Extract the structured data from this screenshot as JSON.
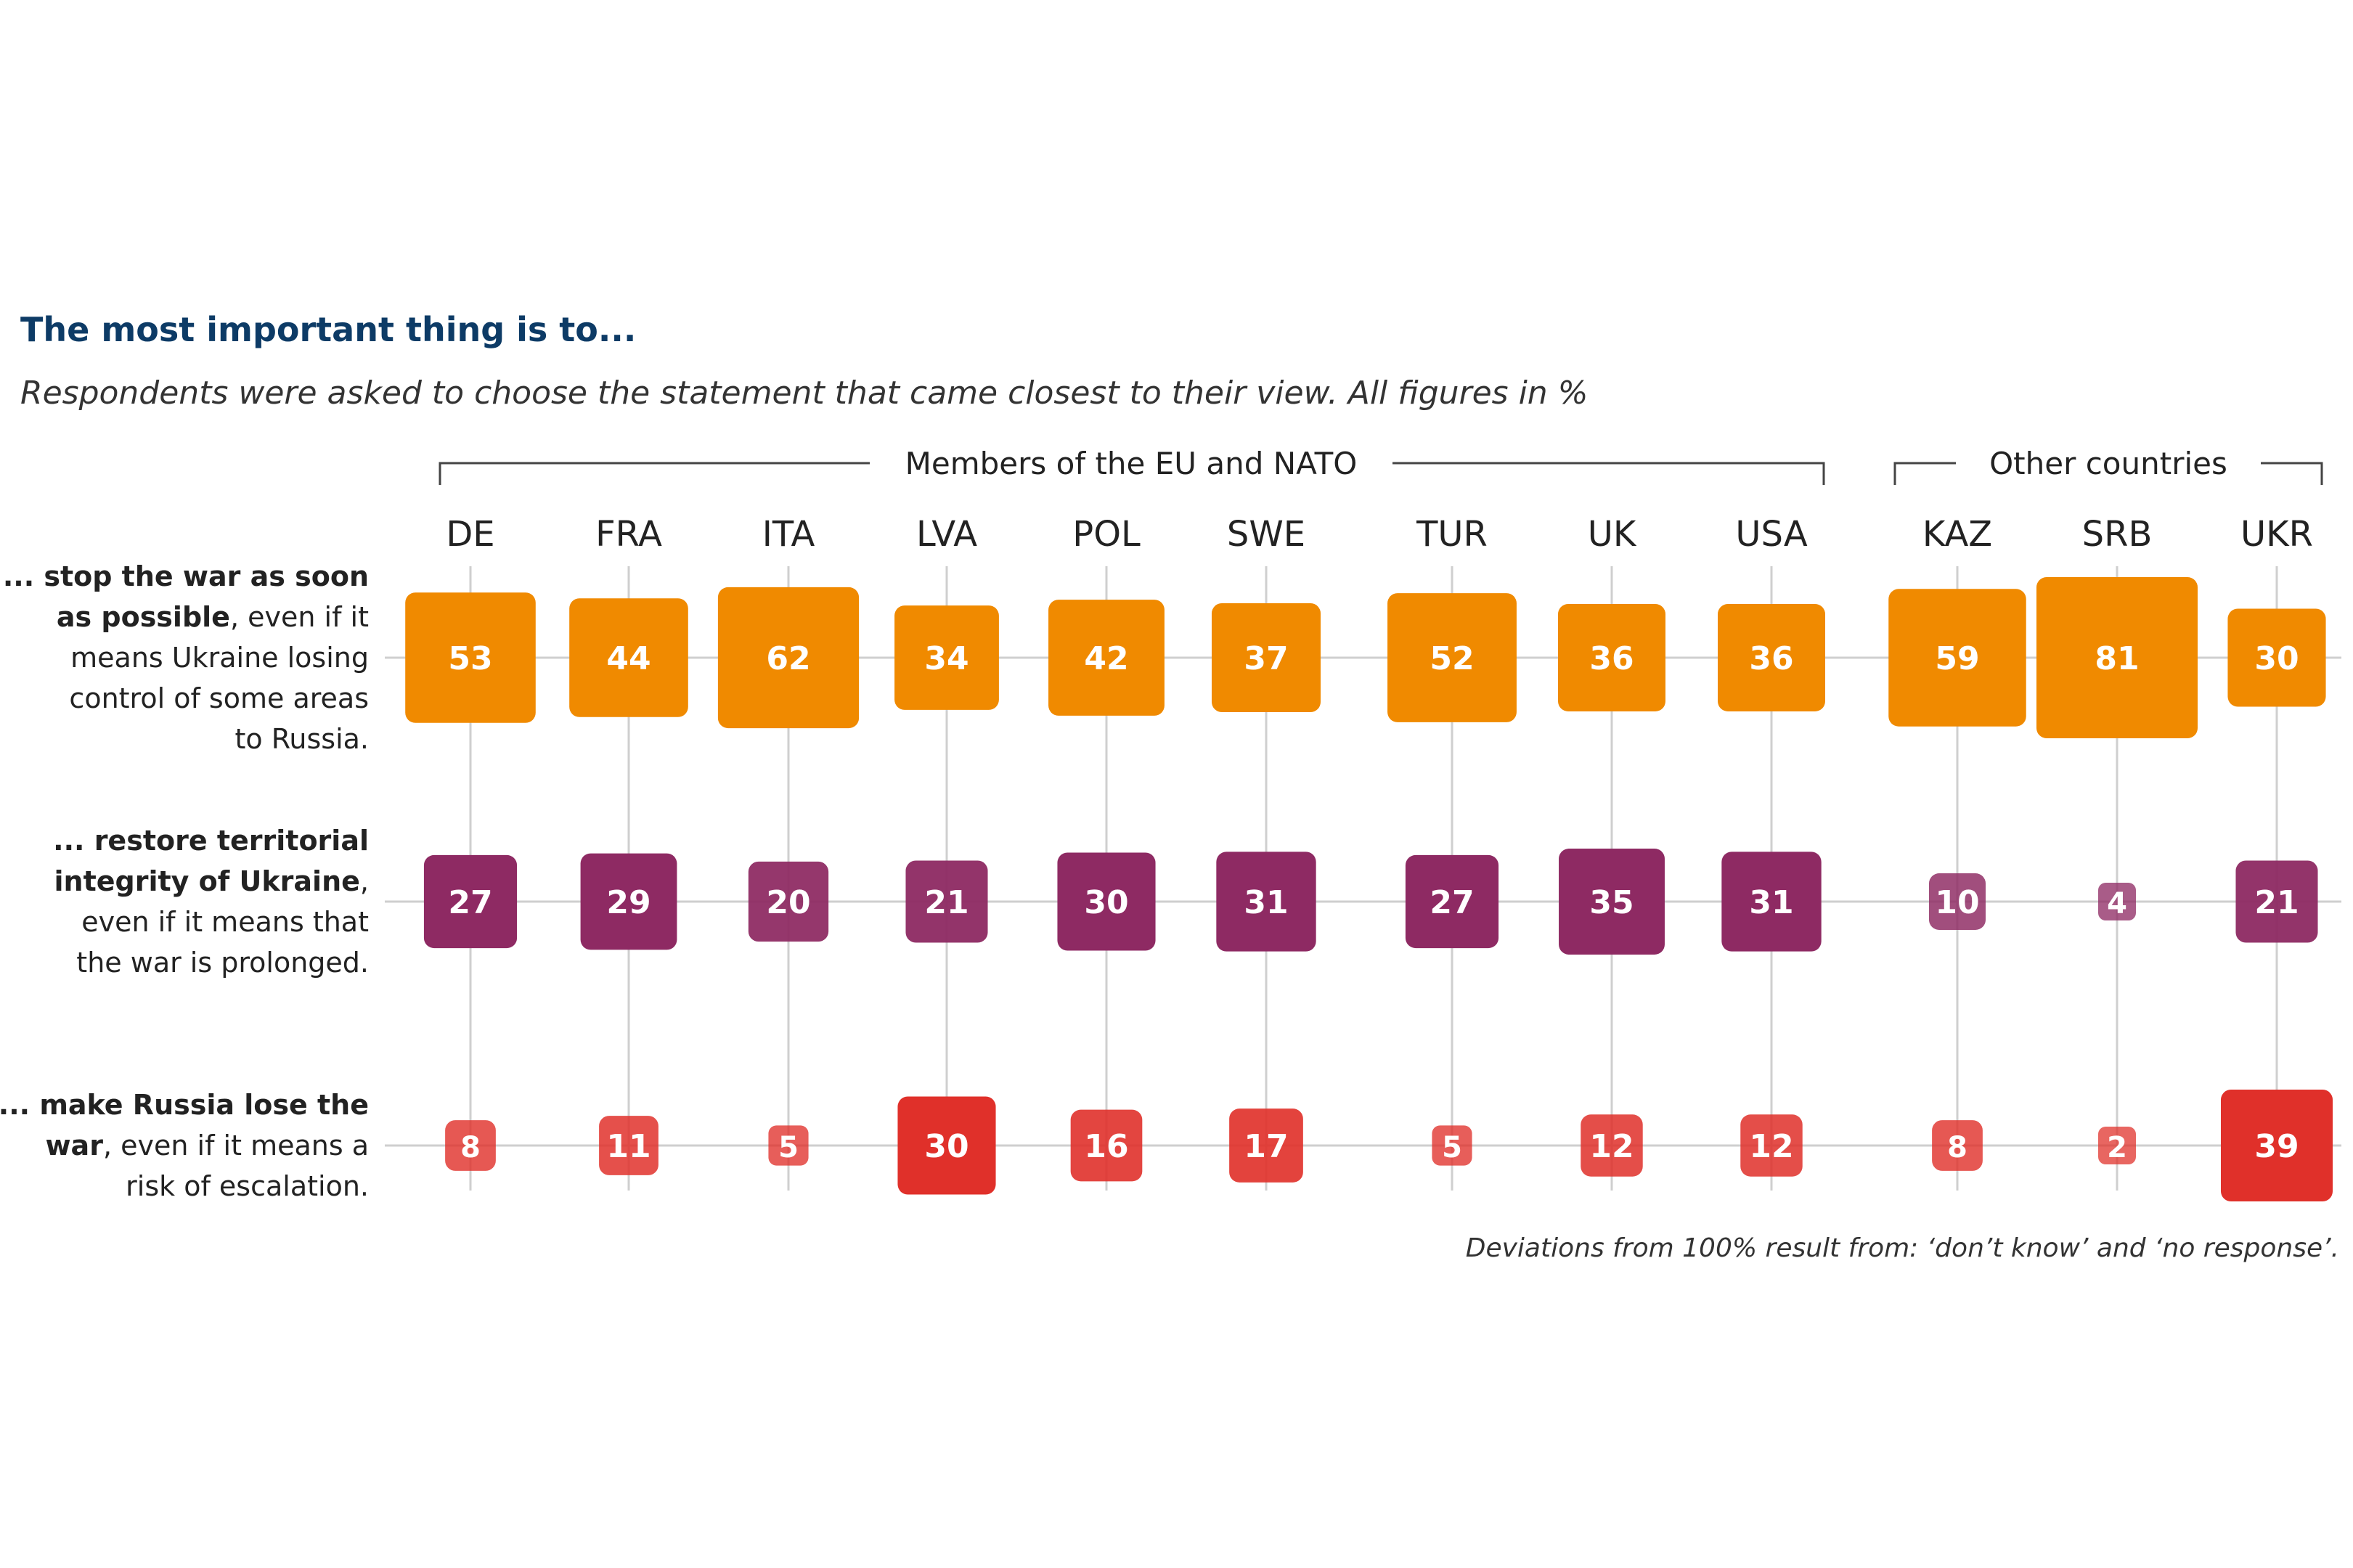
{
  "chart_data": {
    "type": "table",
    "title": "The most important thing is to...",
    "subtitle": "Respondents were asked to choose the statement that came closest to their view. All figures in %",
    "groups": [
      {
        "label": "Members of the EU and NATO",
        "countries": [
          "DE",
          "FRA",
          "ITA",
          "LVA",
          "POL",
          "SWE",
          "TUR",
          "UK",
          "USA"
        ]
      },
      {
        "label": "Other countries",
        "countries": [
          "KAZ",
          "SRB",
          "UKR"
        ]
      }
    ],
    "categories": [
      "DE",
      "FRA",
      "ITA",
      "LVA",
      "POL",
      "SWE",
      "TUR",
      "UK",
      "USA",
      "KAZ",
      "SRB",
      "UKR"
    ],
    "series": [
      {
        "label_lines": [
          [
            {
              "t": "... stop the war as soon",
              "b": true
            }
          ],
          [
            {
              "t": "as possible",
              "b": true
            },
            {
              "t": ", even if it",
              "b": false
            }
          ],
          [
            {
              "t": "means Ukraine losing",
              "b": false
            }
          ],
          [
            {
              "t": "control of some areas",
              "b": false
            }
          ],
          [
            {
              "t": "to Russia.",
              "b": false
            }
          ]
        ],
        "color": "#f08a00",
        "values": [
          53,
          44,
          62,
          34,
          42,
          37,
          52,
          36,
          36,
          59,
          81,
          30
        ]
      },
      {
        "label_lines": [
          [
            {
              "t": "... restore territorial",
              "b": true
            }
          ],
          [
            {
              "t": "integrity of Ukraine",
              "b": true
            },
            {
              "t": ",",
              "b": false
            }
          ],
          [
            {
              "t": "even if it means that",
              "b": false
            }
          ],
          [
            {
              "t": "the war is prolonged.",
              "b": false
            }
          ]
        ],
        "color": "#8e2a63",
        "values": [
          27,
          29,
          20,
          21,
          30,
          31,
          27,
          35,
          31,
          10,
          4,
          21
        ]
      },
      {
        "label_lines": [
          [
            {
              "t": "... make Russia lose the",
              "b": true
            }
          ],
          [
            {
              "t": "war",
              "b": true
            },
            {
              "t": ", even if it means a",
              "b": false
            }
          ],
          [
            {
              "t": "risk of escalation.",
              "b": false
            }
          ]
        ],
        "color": "#e0302a",
        "values": [
          8,
          11,
          5,
          30,
          16,
          17,
          5,
          12,
          12,
          8,
          2,
          39
        ]
      }
    ],
    "note": "Deviations from 100% result from: ‘don’t know’ and ‘no response’."
  }
}
